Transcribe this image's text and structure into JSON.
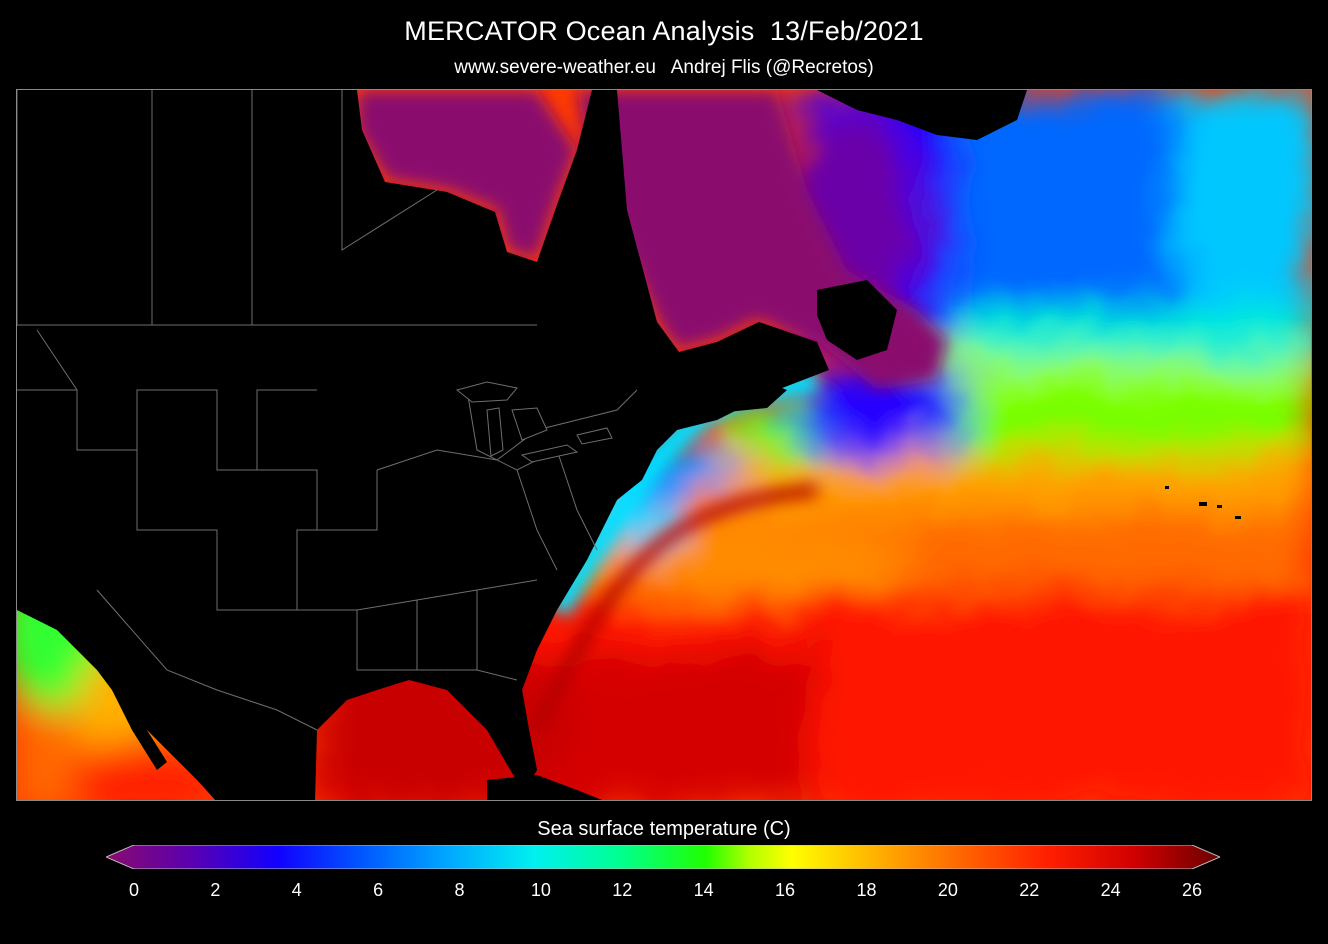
{
  "header": {
    "title": "MERCATOR Ocean Analysis  13/Feb/2021",
    "subtitle": "www.severe-weather.eu   Andrej Flis (@Recretos)"
  },
  "colorbar": {
    "title": "Sea surface temperature (C)",
    "min": 0,
    "max": 26,
    "tick_labels": [
      "0",
      "2",
      "4",
      "6",
      "8",
      "10",
      "12",
      "14",
      "16",
      "18",
      "20",
      "22",
      "24",
      "26"
    ],
    "stops": [
      {
        "value": 0,
        "color": "#8a0a6e"
      },
      {
        "value": 2,
        "color": "#5a00b0"
      },
      {
        "value": 4,
        "color": "#1200ff"
      },
      {
        "value": 6,
        "color": "#0058ff"
      },
      {
        "value": 8,
        "color": "#00a8ff"
      },
      {
        "value": 10,
        "color": "#00f0f0"
      },
      {
        "value": 12,
        "color": "#00ff90"
      },
      {
        "value": 14,
        "color": "#20ff00"
      },
      {
        "value": 15,
        "color": "#b0ff00"
      },
      {
        "value": 16,
        "color": "#ffff00"
      },
      {
        "value": 18,
        "color": "#ffb000"
      },
      {
        "value": 20,
        "color": "#ff6400"
      },
      {
        "value": 22,
        "color": "#ff1e00"
      },
      {
        "value": 24,
        "color": "#d00000"
      },
      {
        "value": 26,
        "color": "#6a0000"
      }
    ]
  },
  "map": {
    "land_color": "#000000",
    "border_color": "#6e6e6e"
  }
}
